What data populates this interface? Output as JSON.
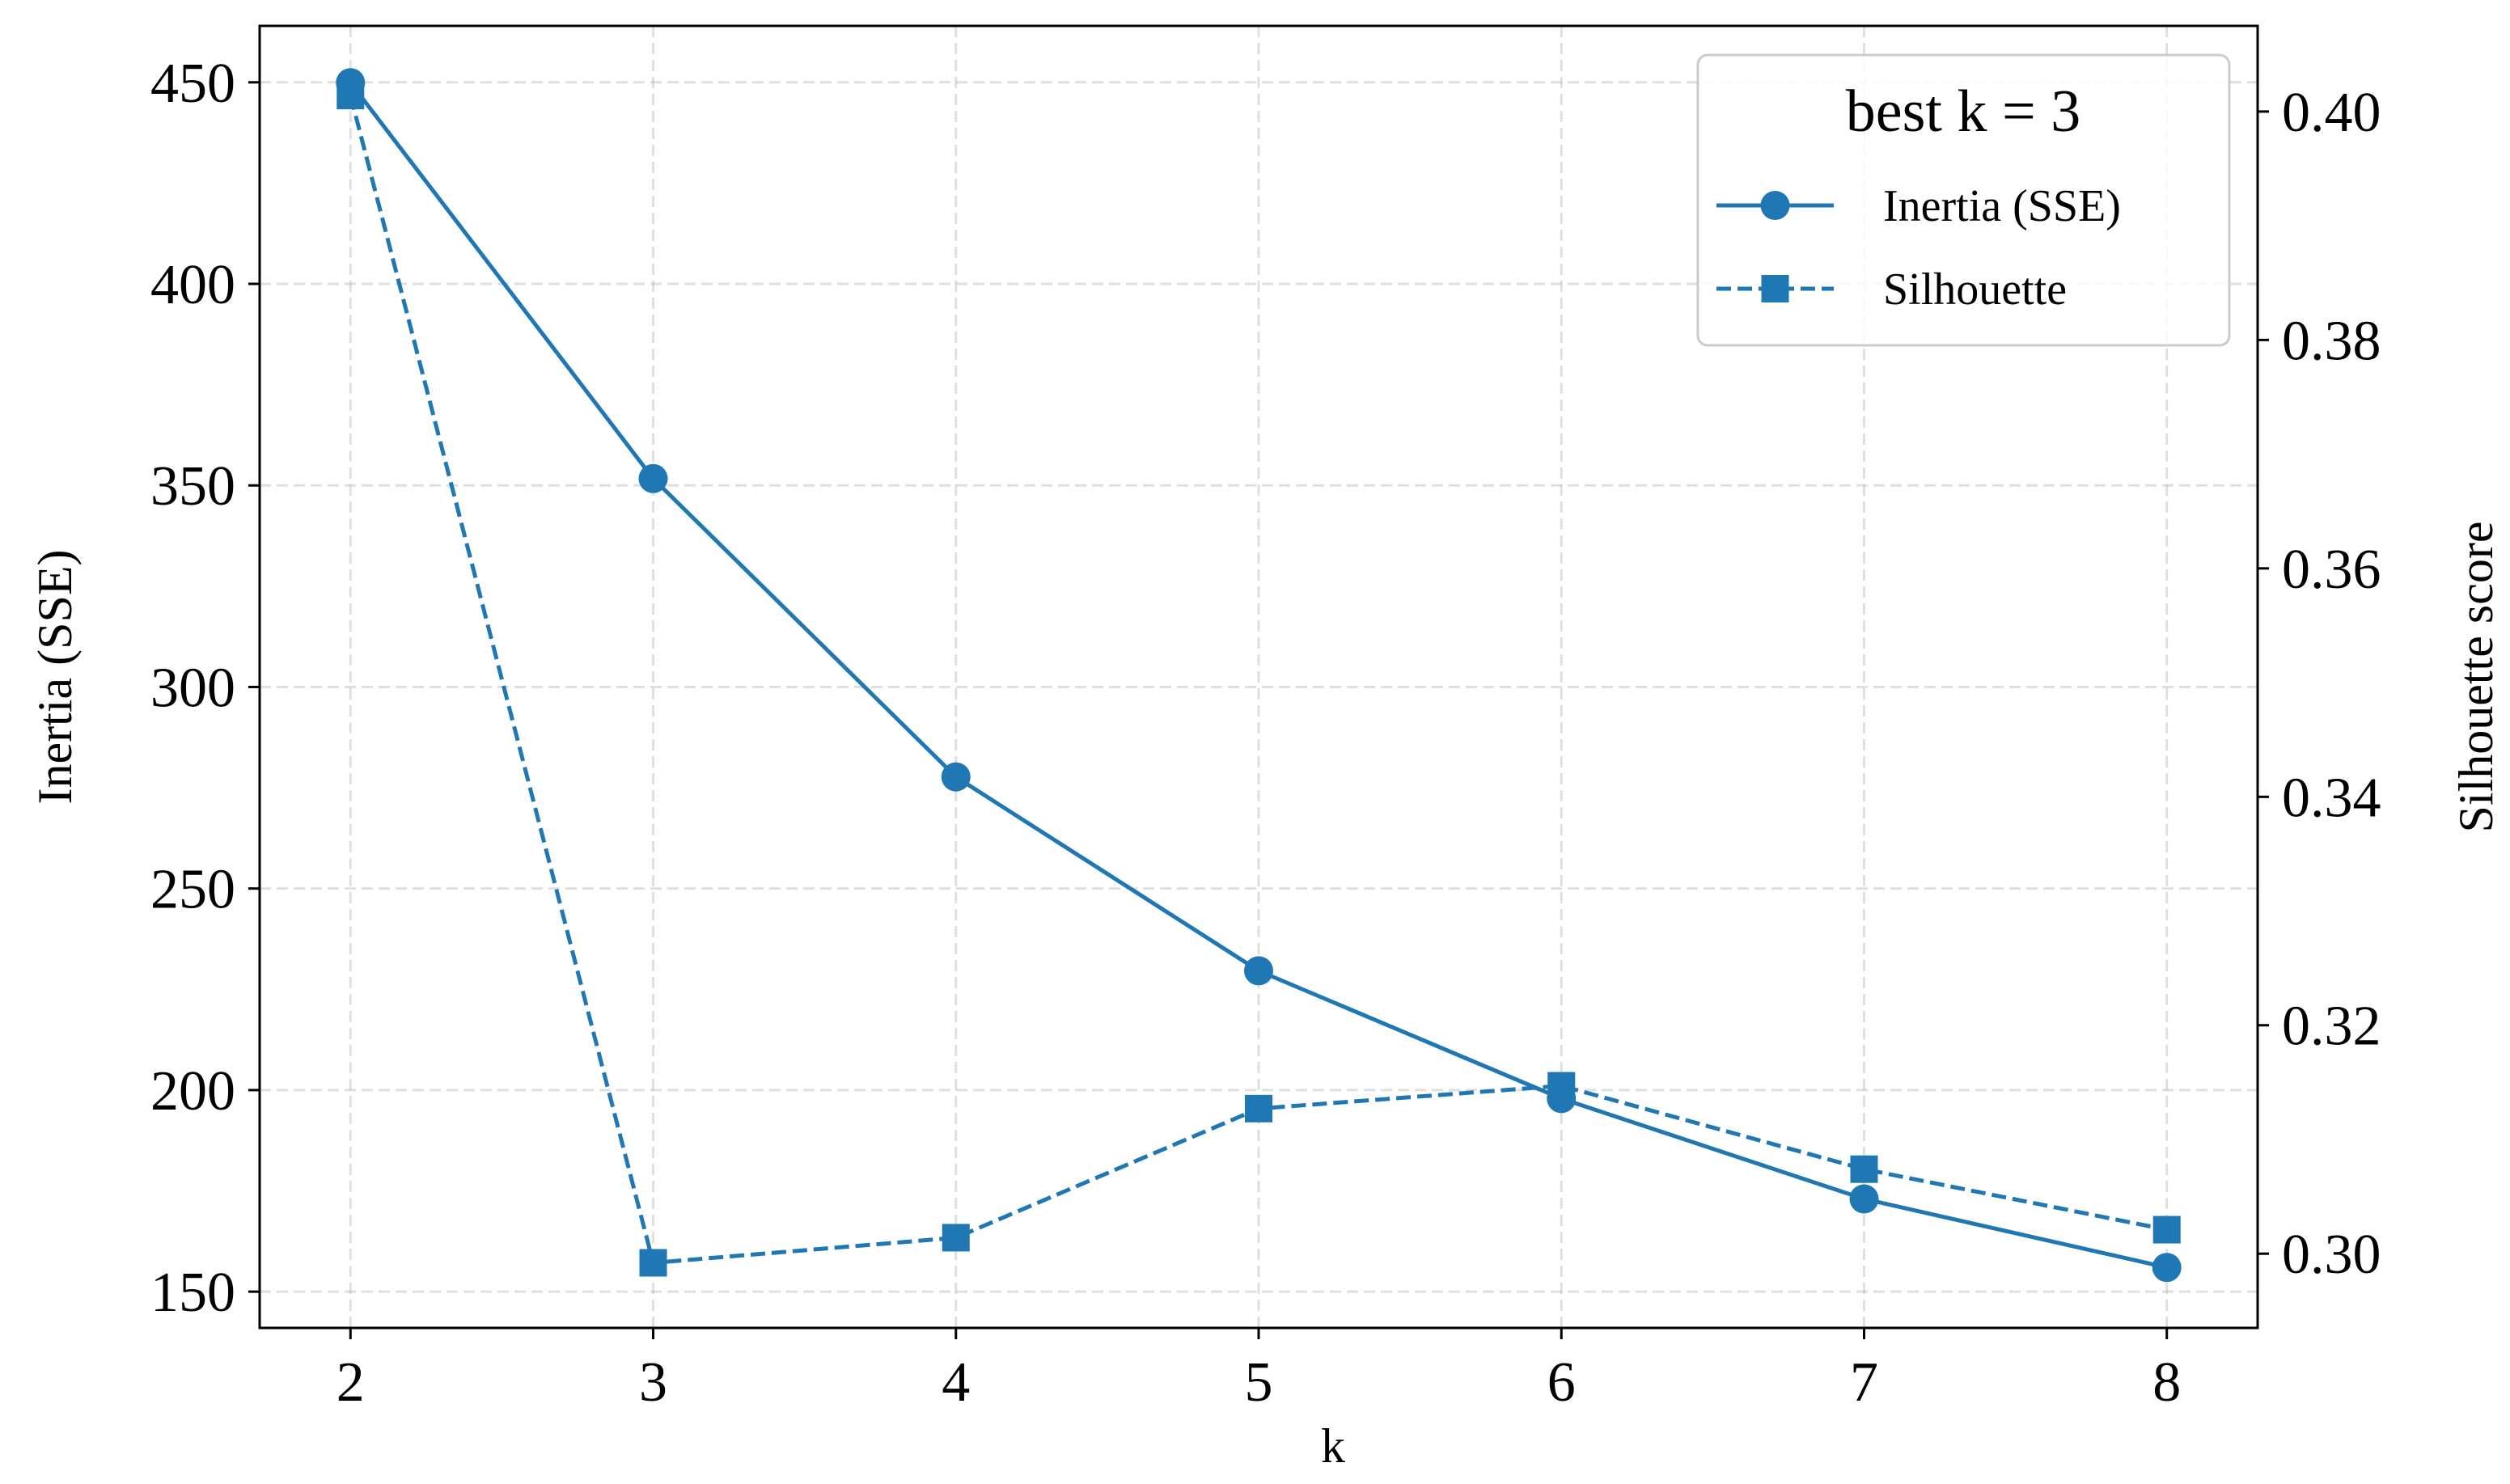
{
  "chart_data": {
    "type": "line",
    "x": [
      2,
      3,
      4,
      5,
      6,
      7,
      8
    ],
    "xlabel": "k",
    "xlim": [
      1.7,
      8.3
    ],
    "x_ticks": [
      "2",
      "3",
      "4",
      "5",
      "6",
      "7",
      "8"
    ],
    "y_left": {
      "label": "Inertia (SSE)",
      "ylim": [
        141,
        464
      ],
      "ticks": [
        "150",
        "200",
        "250",
        "300",
        "350",
        "400",
        "450"
      ]
    },
    "y_right": {
      "label": "Silhouette score",
      "ylim": [
        0.2935,
        0.4075
      ],
      "ticks": [
        "0.30",
        "0.32",
        "0.34",
        "0.36",
        "0.38",
        "0.40"
      ]
    },
    "series": [
      {
        "name": "Inertia (SSE)",
        "axis": "left",
        "marker": "circle",
        "line_style": "solid",
        "color": "#1f77b4",
        "values": [
          449.9,
          351.7,
          277.7,
          229.6,
          197.9,
          173.0,
          156.0
        ]
      },
      {
        "name": "Silhouette",
        "axis": "right",
        "marker": "square",
        "line_style": "dashed",
        "color": "#1f77b4",
        "values": [
          0.4014,
          0.2992,
          0.3014,
          0.3127,
          0.3147,
          0.3074,
          0.3021
        ]
      }
    ],
    "legend": {
      "title": "best k = 3",
      "position": "top-right"
    },
    "grid": true,
    "grid_style": "dashed"
  }
}
